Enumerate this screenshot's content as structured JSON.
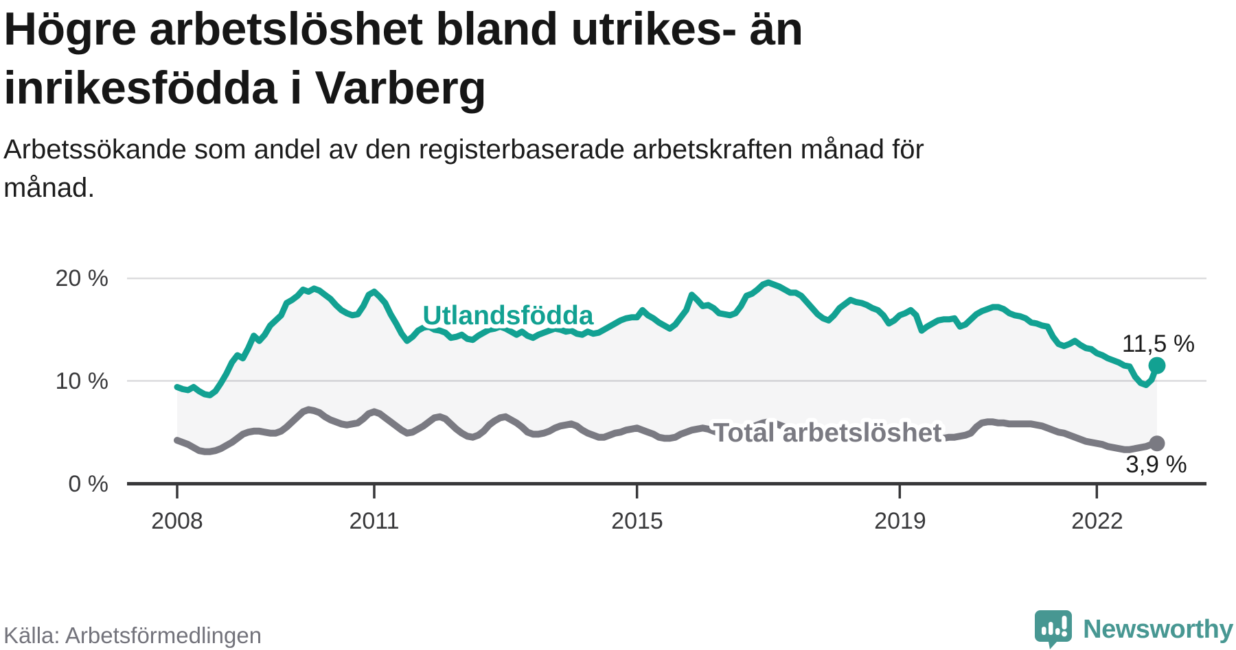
{
  "header": {
    "title": "Högre arbetslöshet bland utrikes- än inrikesfödda i Varberg",
    "subtitle": "Arbetssökande som andel av den registerbaserade arbetskraften månad för månad."
  },
  "chart": {
    "y_ticks": [
      "20 %",
      "10 %",
      "0 %"
    ],
    "x_ticks": [
      "2008",
      "2011",
      "2015",
      "2019",
      "2022"
    ],
    "series_labels": {
      "foreign_born": "Utlandsfödda",
      "total": "Total arbetslöshet"
    },
    "end_labels": {
      "foreign_born": "11,5 %",
      "total": "3,9 %"
    },
    "colors": {
      "foreign_born": "#12a192",
      "total": "#7a7a82",
      "grid": "#dcdcde",
      "axis": "#38383a",
      "fill": "rgba(60,60,70,0.05)",
      "brand_teal": "#479792"
    }
  },
  "chart_data": {
    "type": "line",
    "title": "Högre arbetslöshet bland utrikes- än inrikesfödda i Varberg",
    "x_unit": "month",
    "x_range": [
      "2008-01",
      "2022-12"
    ],
    "ylabel": "",
    "ylim": [
      0,
      21
    ],
    "y_tick_values": [
      0,
      10,
      20
    ],
    "x_tick_years": [
      2008,
      2011,
      2015,
      2019,
      2022
    ],
    "legend_position": "inline-labels",
    "grid": "horizontal",
    "series": [
      {
        "name": "Utlandsfödda",
        "end_value": 11.5,
        "end_label": "11,5 %",
        "values": [
          9.4,
          9.2,
          9.1,
          9.4,
          9.0,
          8.7,
          8.6,
          9.0,
          9.8,
          10.7,
          11.8,
          12.5,
          12.2,
          13.2,
          14.4,
          13.9,
          14.5,
          15.4,
          15.9,
          16.4,
          17.6,
          17.9,
          18.3,
          18.9,
          18.7,
          19.0,
          18.8,
          18.4,
          18.0,
          17.4,
          16.9,
          16.6,
          16.4,
          16.5,
          17.3,
          18.4,
          18.7,
          18.2,
          17.6,
          16.5,
          15.6,
          14.6,
          13.9,
          14.3,
          14.9,
          15.2,
          15.3,
          15.0,
          14.9,
          14.7,
          14.2,
          14.3,
          14.5,
          14.1,
          14.0,
          14.4,
          14.7,
          15.0,
          15.1,
          15.3,
          15.1,
          14.8,
          14.5,
          14.8,
          14.4,
          14.2,
          14.5,
          14.7,
          14.9,
          15.1,
          15.0,
          14.8,
          14.9,
          14.6,
          14.5,
          14.8,
          14.6,
          14.7,
          15.0,
          15.3,
          15.6,
          15.9,
          16.1,
          16.2,
          16.2,
          16.9,
          16.4,
          16.1,
          15.7,
          15.4,
          15.1,
          15.5,
          16.2,
          16.9,
          18.4,
          17.9,
          17.3,
          17.4,
          17.1,
          16.6,
          16.5,
          16.4,
          16.6,
          17.3,
          18.3,
          18.5,
          18.9,
          19.4,
          19.6,
          19.4,
          19.2,
          18.9,
          18.6,
          18.6,
          18.3,
          17.7,
          17.1,
          16.5,
          16.1,
          15.9,
          16.4,
          17.1,
          17.5,
          17.9,
          17.7,
          17.6,
          17.4,
          17.1,
          16.9,
          16.4,
          15.6,
          15.9,
          16.4,
          16.6,
          16.9,
          16.4,
          14.9,
          15.3,
          15.6,
          15.9,
          16.0,
          16.0,
          16.1,
          15.3,
          15.5,
          16.0,
          16.5,
          16.8,
          17.0,
          17.2,
          17.2,
          17.0,
          16.6,
          16.4,
          16.3,
          16.1,
          15.7,
          15.6,
          15.4,
          15.3,
          14.3,
          13.6,
          13.4,
          13.6,
          13.9,
          13.5,
          13.2,
          13.1,
          12.7,
          12.5,
          12.2,
          12.0,
          11.8,
          11.5,
          11.4,
          10.4,
          9.8,
          9.6,
          10.1,
          11.5
        ]
      },
      {
        "name": "Total arbetslöshet",
        "end_value": 3.9,
        "end_label": "3,9 %",
        "values": [
          4.2,
          4.0,
          3.8,
          3.5,
          3.2,
          3.1,
          3.1,
          3.2,
          3.4,
          3.7,
          4.0,
          4.4,
          4.8,
          5.0,
          5.1,
          5.1,
          5.0,
          4.9,
          4.9,
          5.1,
          5.5,
          6.0,
          6.5,
          7.0,
          7.2,
          7.1,
          6.9,
          6.5,
          6.2,
          6.0,
          5.8,
          5.7,
          5.8,
          5.9,
          6.3,
          6.8,
          7.0,
          6.8,
          6.4,
          6.0,
          5.6,
          5.2,
          4.9,
          5.0,
          5.3,
          5.6,
          6.0,
          6.4,
          6.5,
          6.3,
          5.8,
          5.3,
          4.9,
          4.6,
          4.5,
          4.7,
          5.1,
          5.7,
          6.1,
          6.4,
          6.5,
          6.2,
          5.9,
          5.5,
          5.0,
          4.8,
          4.8,
          4.9,
          5.1,
          5.4,
          5.6,
          5.7,
          5.8,
          5.6,
          5.2,
          4.9,
          4.7,
          4.5,
          4.5,
          4.7,
          4.9,
          5.0,
          5.2,
          5.3,
          5.4,
          5.2,
          5.0,
          4.8,
          4.5,
          4.4,
          4.4,
          4.5,
          4.8,
          5.0,
          5.2,
          5.3,
          5.4,
          5.3,
          5.1,
          4.9,
          4.7,
          4.6,
          4.7,
          4.9,
          5.2,
          5.5,
          5.7,
          5.9,
          6.0,
          5.9,
          5.7,
          5.5,
          5.3,
          5.2,
          5.2,
          5.3,
          5.2,
          5.1,
          5.0,
          5.0,
          5.1,
          5.0,
          4.9,
          4.8,
          4.6,
          4.5,
          4.5,
          4.6,
          4.5,
          4.4,
          4.4,
          4.5,
          4.6,
          4.6,
          4.5,
          4.4,
          4.3,
          4.3,
          4.4,
          4.4,
          4.4,
          4.5,
          4.5,
          4.6,
          4.7,
          4.9,
          5.5,
          5.9,
          6.0,
          6.0,
          5.9,
          5.9,
          5.8,
          5.8,
          5.8,
          5.8,
          5.8,
          5.7,
          5.6,
          5.4,
          5.2,
          5.0,
          4.9,
          4.7,
          4.5,
          4.3,
          4.1,
          4.0,
          3.9,
          3.8,
          3.6,
          3.5,
          3.4,
          3.3,
          3.3,
          3.4,
          3.5,
          3.6,
          3.8,
          3.9
        ]
      }
    ]
  },
  "footer": {
    "source": "Källa: Arbetsförmedlingen",
    "brand": "Newsworthy"
  }
}
